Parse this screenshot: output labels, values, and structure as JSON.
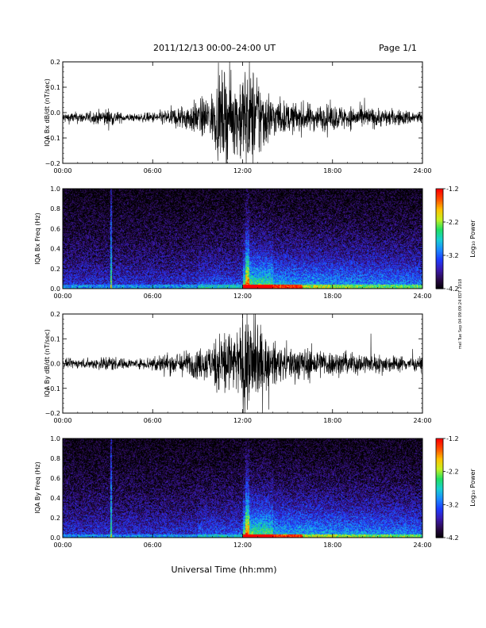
{
  "header": {
    "date_range": "2011/12/13   00:00–24:00 UT",
    "page": "Page 1/1"
  },
  "footer": {
    "xlabel": "Universal Time (hh:mm)"
  },
  "side_note": "mel Tue Sep 04 09:09:24 EDT 2018",
  "colors": {
    "trace": "#000000",
    "colormap": [
      "#000000",
      "#2a0a4a",
      "#3a1ab0",
      "#1c3cff",
      "#1a8cff",
      "#18d0d0",
      "#20e060",
      "#c8f020",
      "#ffc000",
      "#ff5000",
      "#ff0000"
    ]
  },
  "chart_data": [
    {
      "type": "line",
      "ylabel": "IQA Bx dB/dt (nT/sec)",
      "ylim": [
        -0.2,
        0.2
      ],
      "y_ticks": [
        "0.2",
        "0.1",
        "0.0",
        "−0.1",
        "−0.2"
      ],
      "xlim_hours": [
        0,
        24
      ],
      "x_ticks": [
        "00:00",
        "06:00",
        "12:00",
        "18:00",
        "24:00"
      ],
      "grid": false,
      "amplitude_envelope": {
        "hours": [
          0,
          2,
          3,
          4,
          5,
          6,
          7,
          8,
          9,
          10,
          10.5,
          11,
          11.5,
          12,
          12.5,
          13,
          13.5,
          14,
          15,
          16,
          17,
          18,
          20,
          22,
          24
        ],
        "amplitude": [
          0.025,
          0.028,
          0.045,
          0.02,
          0.018,
          0.025,
          0.04,
          0.06,
          0.08,
          0.12,
          0.2,
          0.22,
          0.15,
          0.25,
          0.25,
          0.22,
          0.15,
          0.1,
          0.07,
          0.07,
          0.06,
          0.06,
          0.05,
          0.04,
          0.03
        ]
      }
    },
    {
      "type": "heatmap",
      "ylabel": "IQA Bx Freq (Hz)",
      "ylim": [
        0.0,
        1.0
      ],
      "y_ticks": [
        "1.0",
        "0.8",
        "0.6",
        "0.4",
        "0.2",
        "0.0"
      ],
      "xlim_hours": [
        0,
        24
      ],
      "x_ticks": [
        "00:00",
        "06:00",
        "12:00",
        "18:00",
        "24:00"
      ],
      "colorbar": {
        "label": "Log₁₀ Power",
        "range": [
          -4.2,
          -1.2
        ],
        "ticks": [
          "-1.2",
          "-2.2",
          "-3.2",
          "-4.2"
        ]
      }
    },
    {
      "type": "line",
      "ylabel": "IQA By dB/dt (nT/sec)",
      "ylim": [
        -0.2,
        0.2
      ],
      "y_ticks": [
        "0.2",
        "0.1",
        "0.0",
        "−0.1",
        "−0.2"
      ],
      "xlim_hours": [
        0,
        24
      ],
      "x_ticks": [
        "00:00",
        "06:00",
        "12:00",
        "18:00",
        "24:00"
      ],
      "grid": false,
      "amplitude_envelope": {
        "hours": [
          0,
          2,
          3,
          4,
          5,
          6,
          7,
          8,
          9,
          10,
          10.5,
          11,
          11.5,
          12,
          12.5,
          13,
          13.5,
          14,
          15,
          16,
          17,
          18,
          20,
          22,
          24
        ],
        "amplitude": [
          0.02,
          0.025,
          0.04,
          0.025,
          0.02,
          0.04,
          0.05,
          0.06,
          0.07,
          0.1,
          0.16,
          0.2,
          0.12,
          0.25,
          0.25,
          0.2,
          0.14,
          0.1,
          0.08,
          0.08,
          0.07,
          0.06,
          0.05,
          0.04,
          0.03
        ]
      }
    },
    {
      "type": "heatmap",
      "ylabel": "IQA By Freq (Hz)",
      "ylim": [
        0.0,
        1.0
      ],
      "y_ticks": [
        "1.0",
        "0.8",
        "0.6",
        "0.4",
        "0.2",
        "0.0"
      ],
      "xlim_hours": [
        0,
        24
      ],
      "x_ticks": [
        "00:00",
        "06:00",
        "12:00",
        "18:00",
        "24:00"
      ],
      "colorbar": {
        "label": "Log₁₀ Power",
        "range": [
          -4.2,
          -1.2
        ],
        "ticks": [
          "-1.2",
          "-2.2",
          "-3.2",
          "-4.2"
        ]
      }
    }
  ]
}
